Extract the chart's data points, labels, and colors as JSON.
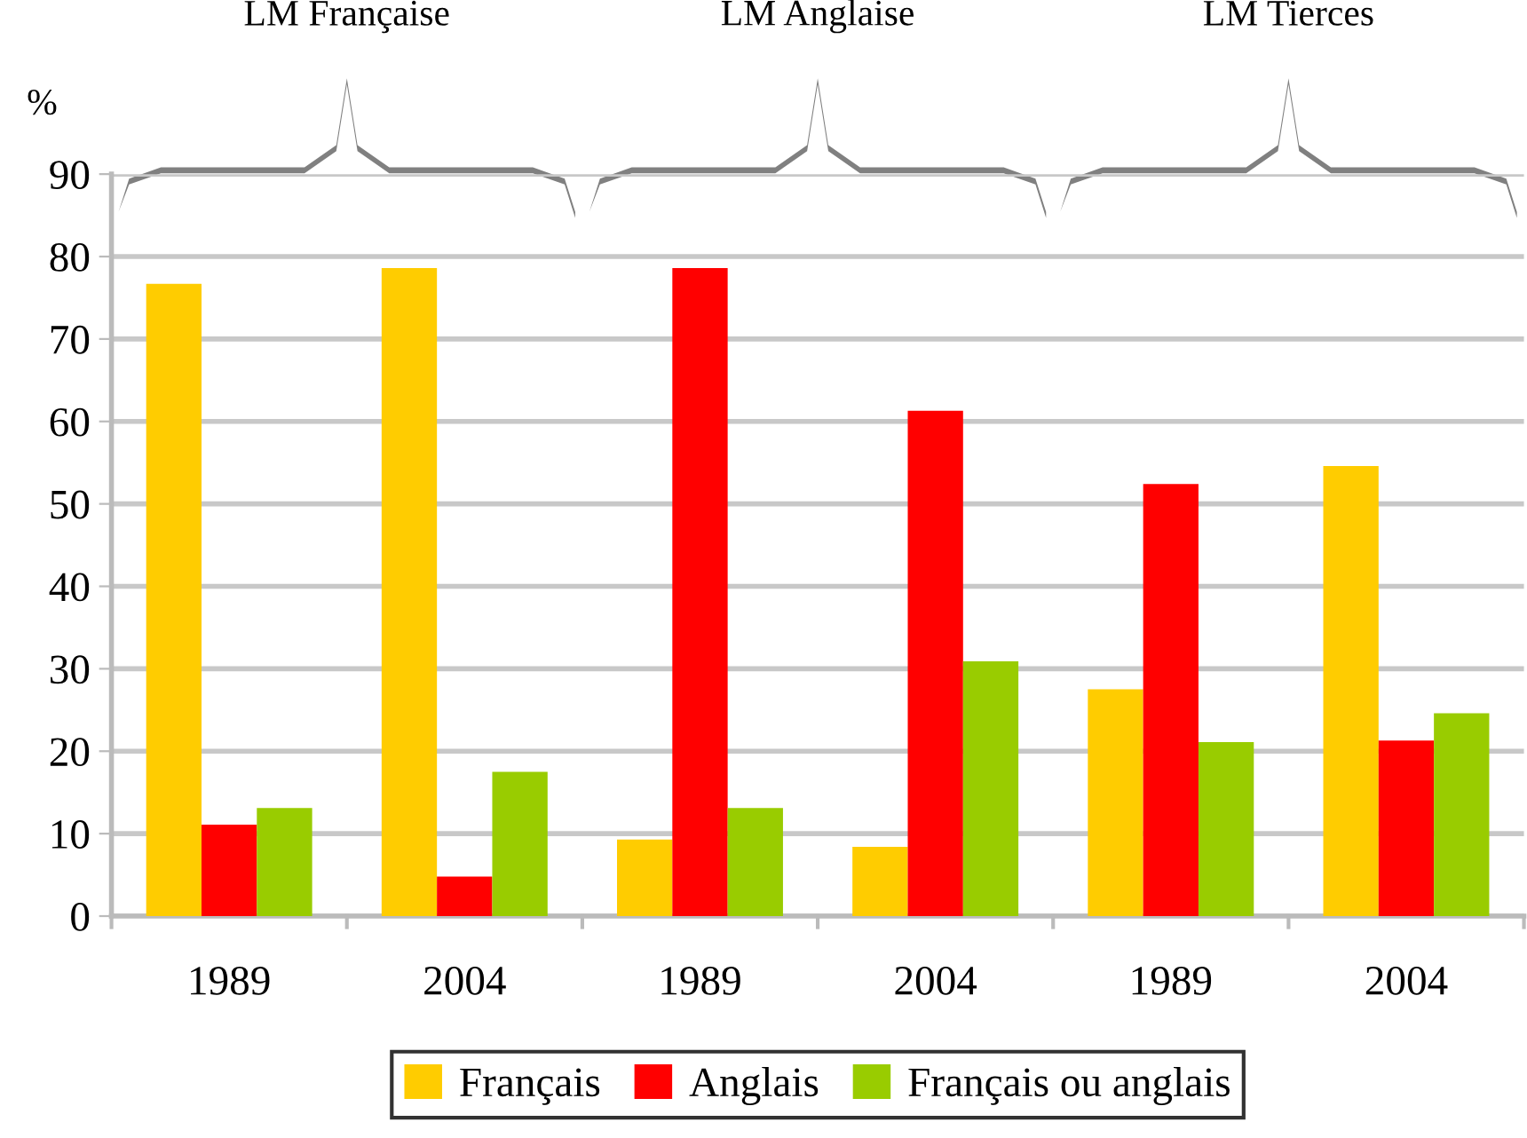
{
  "chart_data": {
    "type": "bar",
    "ylabel": "%",
    "categories": [
      "1989",
      "2004",
      "1989",
      "2004",
      "1989",
      "2004"
    ],
    "annotations": [
      "LM Française",
      "LM Anglaise",
      "LM Tierces"
    ],
    "series": [
      {
        "name": "Français",
        "color": "#ffcc00",
        "values": [
          76.7,
          78.6,
          9.3,
          8.4,
          27.5,
          54.6
        ]
      },
      {
        "name": "Anglais",
        "color": "#ff0000",
        "values": [
          11.1,
          4.8,
          78.6,
          61.3,
          52.4,
          21.3
        ]
      },
      {
        "name": "Français ou anglais",
        "color": "#99cc00",
        "values": [
          13.1,
          17.5,
          13.1,
          30.9,
          21.1,
          24.6
        ]
      }
    ],
    "ylim": [
      0,
      90
    ],
    "yticks": [
      0,
      10,
      20,
      30,
      40,
      50,
      60,
      70,
      80,
      90
    ],
    "grid": "y",
    "legend": "bottom"
  }
}
